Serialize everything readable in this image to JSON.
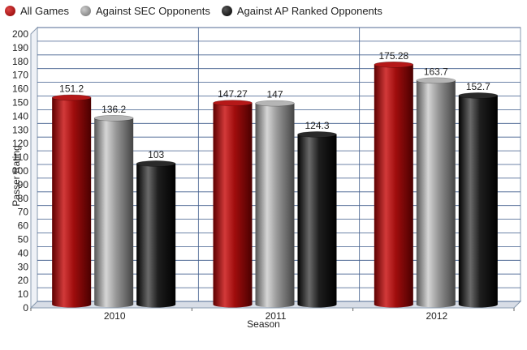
{
  "chart_data": {
    "type": "bar",
    "xlabel": "Season",
    "ylabel": "Passer Rating",
    "categories": [
      "2010",
      "2011",
      "2012"
    ],
    "ylim": [
      0,
      200
    ],
    "ytick_step": 10,
    "grid": true,
    "legend_position": "top-left",
    "series": [
      {
        "name": "All Games",
        "color": "#9b0b0b",
        "values": [
          151.2,
          147.27,
          175.28
        ],
        "labels": [
          "151.2",
          "147.27",
          "175.28"
        ]
      },
      {
        "name": "Against SEC Opponents",
        "color": "#8c8c8c",
        "values": [
          136.2,
          147,
          163.7
        ],
        "labels": [
          "136.2",
          "147",
          "163.7"
        ]
      },
      {
        "name": "Against AP Ranked Opponents",
        "color": "#0a0a0a",
        "values": [
          103,
          124.3,
          152.7
        ],
        "labels": [
          "103",
          "124.3",
          "152.7"
        ]
      }
    ]
  }
}
